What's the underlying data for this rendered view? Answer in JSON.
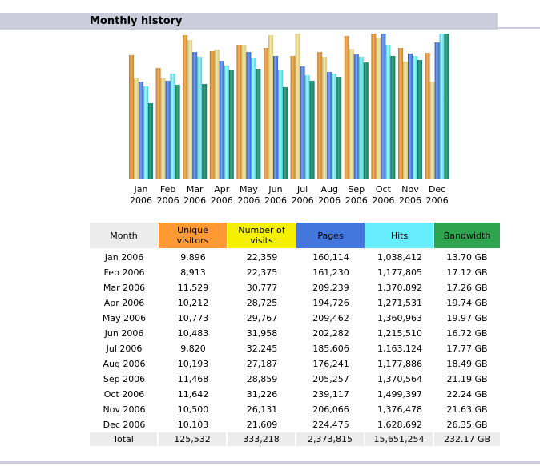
{
  "section": {
    "title": "Monthly history"
  },
  "colors": {
    "title_bar": "#ccccdd",
    "unique_visitors": "#ff9933",
    "visits": "#f4f000",
    "pages": "#4477dd",
    "hits": "#66eeff",
    "bandwidth": "#2ea44f",
    "month_header": "#ececec"
  },
  "table": {
    "headers": [
      "Month",
      "Unique visitors",
      "Number of visits",
      "Pages",
      "Hits",
      "Bandwidth"
    ],
    "header_lines": [
      [
        "Month"
      ],
      [
        "Unique",
        "visitors"
      ],
      [
        "Number of",
        "visits"
      ],
      [
        "Pages"
      ],
      [
        "Hits"
      ],
      [
        "Bandwidth"
      ]
    ],
    "rows": [
      [
        "Jan 2006",
        "9,896",
        "22,359",
        "160,114",
        "1,038,412",
        "13.70 GB"
      ],
      [
        "Feb 2006",
        "8,913",
        "22,375",
        "161,230",
        "1,177,805",
        "17.12 GB"
      ],
      [
        "Mar 2006",
        "11,529",
        "30,777",
        "209,239",
        "1,370,892",
        "17.26 GB"
      ],
      [
        "Apr 2006",
        "10,212",
        "28,725",
        "194,726",
        "1,271,531",
        "19.74 GB"
      ],
      [
        "May 2006",
        "10,773",
        "29,767",
        "209,462",
        "1,360,963",
        "19.97 GB"
      ],
      [
        "Jun 2006",
        "10,483",
        "31,958",
        "202,282",
        "1,215,510",
        "16.72 GB"
      ],
      [
        "Jul 2006",
        "9,820",
        "32,245",
        "185,606",
        "1,163,124",
        "17.77 GB"
      ],
      [
        "Aug 2006",
        "10,193",
        "27,187",
        "176,241",
        "1,177,886",
        "18.49 GB"
      ],
      [
        "Sep 2006",
        "11,468",
        "28,859",
        "205,257",
        "1,370,564",
        "21.19 GB"
      ],
      [
        "Oct 2006",
        "11,642",
        "31,226",
        "239,117",
        "1,499,397",
        "22.24 GB"
      ],
      [
        "Nov 2006",
        "10,500",
        "26,131",
        "206,066",
        "1,376,478",
        "21.63 GB"
      ],
      [
        "Dec 2006",
        "10,103",
        "21,609",
        "224,475",
        "1,628,692",
        "26.35 GB"
      ]
    ],
    "total": [
      "Total",
      "125,532",
      "333,218",
      "2,373,815",
      "15,651,254",
      "232.17 GB"
    ]
  },
  "chart_data": {
    "type": "bar",
    "title": "Monthly history",
    "xlabel": "",
    "ylabel": "",
    "grid": false,
    "legend": "none (column headers of table below act as legend)",
    "scaling": "each series normalized to its own maximum",
    "categories": [
      "Jan 2006",
      "Feb 2006",
      "Mar 2006",
      "Apr 2006",
      "May 2006",
      "Jun 2006",
      "Jul 2006",
      "Aug 2006",
      "Sep 2006",
      "Oct 2006",
      "Nov 2006",
      "Dec 2006"
    ],
    "category_lines": [
      [
        "Jan",
        "2006"
      ],
      [
        "Feb",
        "2006"
      ],
      [
        "Mar",
        "2006"
      ],
      [
        "Apr",
        "2006"
      ],
      [
        "May",
        "2006"
      ],
      [
        "Jun",
        "2006"
      ],
      [
        "Jul",
        "2006"
      ],
      [
        "Aug",
        "2006"
      ],
      [
        "Sep",
        "2006"
      ],
      [
        "Oct",
        "2006"
      ],
      [
        "Nov",
        "2006"
      ],
      [
        "Dec",
        "2006"
      ]
    ],
    "series": [
      {
        "name": "Unique visitors",
        "key": "unique_visitors",
        "values": [
          9896,
          8913,
          11529,
          10212,
          10773,
          10483,
          9820,
          10193,
          11468,
          11642,
          10500,
          10103
        ]
      },
      {
        "name": "Number of visits",
        "key": "visits",
        "values": [
          22359,
          22375,
          30777,
          28725,
          29767,
          31958,
          32245,
          27187,
          28859,
          31226,
          26131,
          21609
        ]
      },
      {
        "name": "Pages",
        "key": "pages",
        "values": [
          160114,
          161230,
          209239,
          194726,
          209462,
          202282,
          185606,
          176241,
          205257,
          239117,
          206066,
          224475
        ]
      },
      {
        "name": "Hits",
        "key": "hits",
        "values": [
          1038412,
          1177805,
          1370892,
          1271531,
          1360963,
          1215510,
          1163124,
          1177886,
          1370564,
          1499397,
          1376478,
          1628692
        ]
      },
      {
        "name": "Bandwidth (GB)",
        "key": "bandwidth",
        "values": [
          13.7,
          17.12,
          17.26,
          19.74,
          19.97,
          16.72,
          17.77,
          18.49,
          21.19,
          22.24,
          21.63,
          26.35
        ]
      }
    ]
  }
}
